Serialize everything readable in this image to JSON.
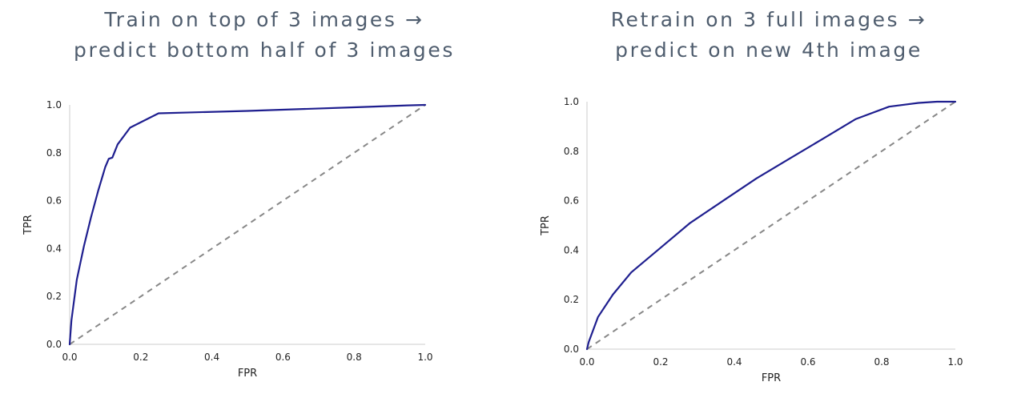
{
  "chart_data": [
    {
      "type": "line",
      "title": [
        "Train on top of 3 images →",
        "predict bottom half of 3 images"
      ],
      "xlabel": "FPR",
      "ylabel": "TPR",
      "xlim": [
        0.0,
        1.0
      ],
      "ylim": [
        0.0,
        1.0
      ],
      "xticks": [
        "0.0",
        "0.2",
        "0.4",
        "0.6",
        "0.8",
        "1.0"
      ],
      "yticks": [
        "0.0",
        "0.2",
        "0.4",
        "0.6",
        "0.8",
        "1.0"
      ],
      "grid": false,
      "series": [
        {
          "color": "#1f1f8f",
          "style": "solid",
          "x": [
            0.0,
            0.005,
            0.02,
            0.04,
            0.06,
            0.08,
            0.1,
            0.11,
            0.12,
            0.135,
            0.17,
            0.25,
            0.5,
            0.8,
            0.95,
            1.0
          ],
          "y": [
            0.0,
            0.1,
            0.27,
            0.41,
            0.53,
            0.64,
            0.74,
            0.775,
            0.78,
            0.835,
            0.905,
            0.965,
            0.975,
            0.99,
            0.998,
            1.0
          ]
        },
        {
          "color": "#888888",
          "style": "dashed",
          "x": [
            0.0,
            1.0
          ],
          "y": [
            0.0,
            1.0
          ]
        }
      ]
    },
    {
      "type": "line",
      "title": [
        "Retrain on 3 full images →",
        "predict on new 4th image"
      ],
      "xlabel": "FPR",
      "ylabel": "TPR",
      "xlim": [
        0.0,
        1.0
      ],
      "ylim": [
        0.0,
        1.0
      ],
      "xticks": [
        "0.0",
        "0.2",
        "0.4",
        "0.6",
        "0.8",
        "1.0"
      ],
      "yticks": [
        "0.0",
        "0.2",
        "0.4",
        "0.6",
        "0.8",
        "1.0"
      ],
      "grid": false,
      "series": [
        {
          "color": "#1f1f8f",
          "style": "solid",
          "x": [
            0.0,
            0.005,
            0.03,
            0.07,
            0.12,
            0.2,
            0.28,
            0.37,
            0.46,
            0.55,
            0.64,
            0.73,
            0.82,
            0.9,
            0.95,
            1.0
          ],
          "y": [
            0.0,
            0.03,
            0.13,
            0.22,
            0.31,
            0.41,
            0.51,
            0.6,
            0.69,
            0.77,
            0.85,
            0.93,
            0.98,
            0.995,
            1.0,
            1.0
          ]
        },
        {
          "color": "#888888",
          "style": "dashed",
          "x": [
            0.0,
            1.0
          ],
          "y": [
            0.0,
            1.0
          ]
        }
      ]
    }
  ]
}
